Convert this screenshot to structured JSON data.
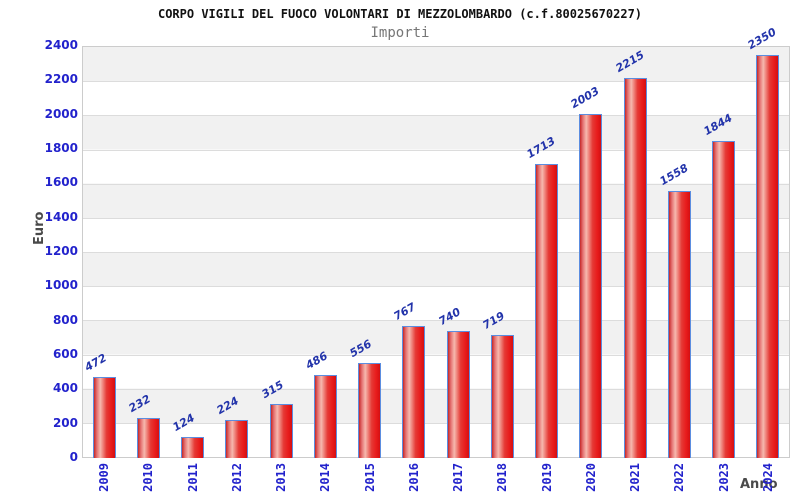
{
  "chart_data": {
    "type": "bar",
    "title": "CORPO VIGILI DEL FUOCO VOLONTARI DI MEZZOLOMBARDO (c.f.80025670227)",
    "subtitle": "Importi",
    "xlabel": "Anno",
    "ylabel": "Euro",
    "categories": [
      "2009",
      "2010",
      "2011",
      "2012",
      "2013",
      "2014",
      "2015",
      "2016",
      "2017",
      "2018",
      "2019",
      "2020",
      "2021",
      "2022",
      "2023",
      "2024"
    ],
    "values": [
      472,
      232,
      124,
      224,
      315,
      486,
      556,
      767,
      740,
      719,
      1713,
      2003,
      2215,
      1558,
      1844,
      2350
    ],
    "ylim": [
      0,
      2400
    ],
    "ytick_step": 200,
    "yticks": [
      0,
      200,
      400,
      600,
      800,
      1000,
      1200,
      1400,
      1600,
      1800,
      2000,
      2200,
      2400
    ],
    "grid": "horizontal, alternating shaded bands",
    "legend_position": "none",
    "colors": {
      "bar_fill_dark": "#d40f12",
      "bar_fill_light": "#f6b8ae",
      "bar_border": "#5b8de0",
      "tick_label": "#2222cc",
      "value_label": "#2233aa",
      "band_gray": "#f1f1f1",
      "gridline": "#dcdcdc",
      "plot_border": "#cccccc",
      "title_color": "#111111",
      "subtitle_color": "#767676",
      "axis_title_color": "#4a4a4a"
    }
  }
}
